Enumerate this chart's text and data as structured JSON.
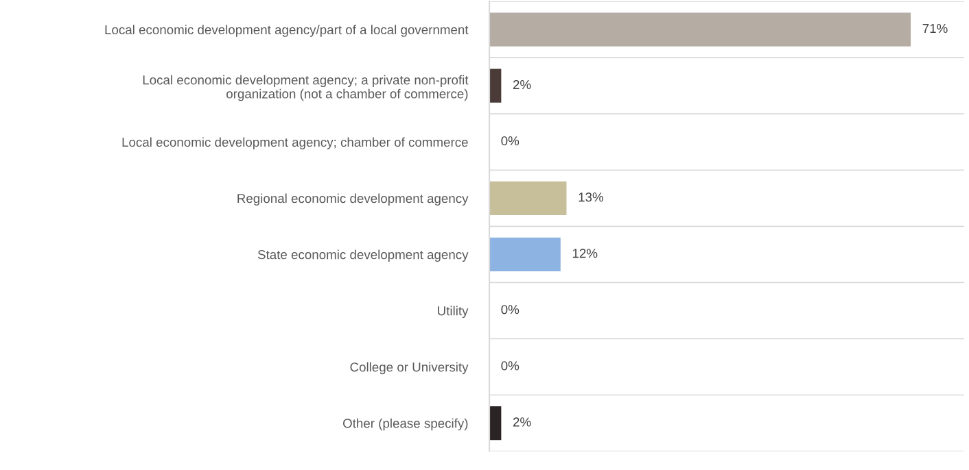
{
  "chart_data": {
    "type": "bar",
    "orientation": "horizontal",
    "categories": [
      "Local economic development agency/part of a local government",
      "Local economic development agency; a private non-profit\norganization (not a chamber of commerce)",
      "Local economic development agency; chamber of commerce",
      "Regional economic development agency",
      "State economic development agency",
      "Utility",
      "College or University",
      "Other (please specify)"
    ],
    "values": [
      71,
      2,
      0,
      13,
      12,
      0,
      0,
      2
    ],
    "colors": [
      "#b5aca3",
      "#4a3b38",
      "#8c8c8c",
      "#c7bf9a",
      "#8db3e2",
      "#8c8c8c",
      "#8c8c8c",
      "#2b2424"
    ],
    "value_labels": [
      "71%",
      "2%",
      "0%",
      "13%",
      "12%",
      "0%",
      "0%",
      "2%"
    ],
    "xlim": [
      0,
      80
    ],
    "grid": "y",
    "tick_labels": "y"
  }
}
